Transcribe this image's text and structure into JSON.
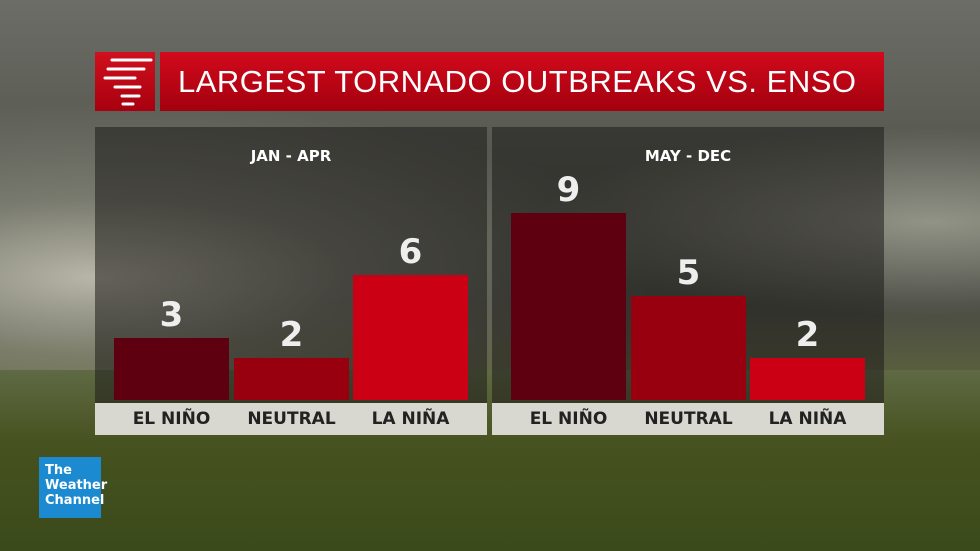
{
  "header": {
    "title": "LARGEST TORNADO OUTBREAKS VS. ENSO",
    "icon": "tornado-icon"
  },
  "logo": {
    "line1": "The",
    "line2": "Weather",
    "line3": "Channel"
  },
  "chart_data": [
    {
      "type": "bar",
      "title": "JAN - APR",
      "categories": [
        "EL NIÑO",
        "NEUTRAL",
        "LA NIÑA"
      ],
      "values": [
        3,
        2,
        6
      ],
      "colors": [
        "#5e0010",
        "#99000f",
        "#cc0015"
      ],
      "ylim": [
        0,
        9
      ]
    },
    {
      "type": "bar",
      "title": "MAY - DEC",
      "categories": [
        "EL NIÑO",
        "NEUTRAL",
        "LA NIÑA"
      ],
      "values": [
        9,
        5,
        2
      ],
      "colors": [
        "#5e0010",
        "#99000f",
        "#cc0015"
      ],
      "ylim": [
        0,
        9
      ]
    }
  ]
}
